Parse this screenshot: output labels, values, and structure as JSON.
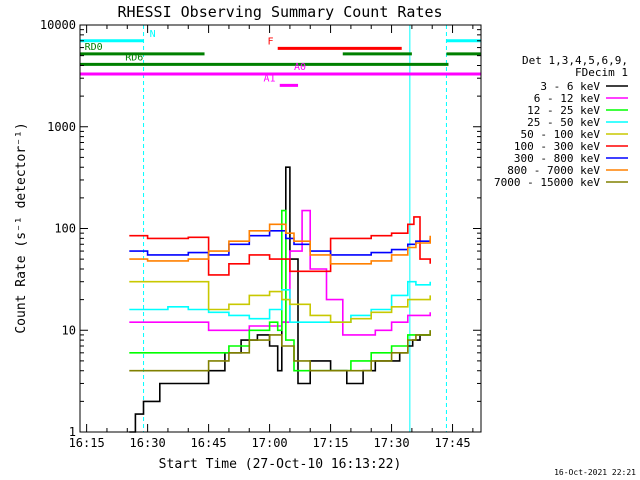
{
  "chart_data": {
    "type": "line",
    "title": "RHESSI Observing Summary Count Rates",
    "xlabel": "Start Time (27-Oct-10 16:13:22)",
    "ylabel": "Count Rate (s⁻¹ detector⁻¹)",
    "yscale": "log",
    "ylim": [
      1,
      10000
    ],
    "xlim_minutes": [
      13.37,
      112
    ],
    "x_unit": "minutes after 16:00 UT",
    "x_ticks": [
      {
        "t": 15,
        "label": "16:15"
      },
      {
        "t": 30,
        "label": "16:30"
      },
      {
        "t": 45,
        "label": "16:45"
      },
      {
        "t": 60,
        "label": "17:00"
      },
      {
        "t": 75,
        "label": "17:15"
      },
      {
        "t": 90,
        "label": "17:30"
      },
      {
        "t": 105,
        "label": "17:45"
      }
    ],
    "y_ticks": [
      {
        "v": 1,
        "label": "1"
      },
      {
        "v": 10,
        "label": "10"
      },
      {
        "v": 100,
        "label": "100"
      },
      {
        "v": 1000,
        "label": "1000"
      },
      {
        "v": 10000,
        "label": "10000"
      }
    ],
    "legend_header": [
      "Det 1,3,4,5,6,9,",
      "FDecim 1"
    ],
    "legend_placement": "right",
    "grid": false,
    "timestamp": "16-Oct-2021 22:21",
    "night_boundaries": [
      13.37,
      29,
      94.5,
      103.5
    ],
    "series": [
      {
        "name": "3 - 6 keV",
        "color": "#000000",
        "x": [
          25.5,
          27,
          29,
          33,
          37,
          41,
          45,
          49,
          53,
          57,
          60,
          62,
          63,
          64,
          65,
          67,
          70,
          75,
          79,
          83,
          86,
          89,
          92,
          94,
          95.2,
          97,
          99.5
        ],
        "y": [
          1,
          1.5,
          2,
          3,
          3,
          3,
          4,
          6,
          8,
          9,
          7,
          4,
          12,
          400,
          50,
          3,
          5,
          4,
          3,
          4,
          5,
          5,
          6,
          7,
          8,
          9,
          9
        ]
      },
      {
        "name": "6 - 12 keV",
        "color": "#ff00ff",
        "x": [
          25.5,
          30,
          35,
          40,
          42.5,
          45,
          50,
          55,
          60,
          63,
          65,
          68,
          70,
          74,
          78,
          82,
          86,
          90,
          94,
          96,
          99.5
        ],
        "y": [
          12,
          12,
          12,
          12,
          12,
          10,
          10,
          11,
          11,
          12,
          60,
          150,
          40,
          20,
          9,
          9,
          10,
          12,
          14,
          14,
          15
        ]
      },
      {
        "name": "12 - 25 keV",
        "color": "#00ff00",
        "x": [
          25.5,
          30,
          35,
          40,
          45,
          50,
          55,
          60,
          62,
          63,
          64,
          66,
          70,
          75,
          80,
          85,
          90,
          94,
          96,
          99.5
        ],
        "y": [
          6,
          6,
          6,
          6,
          6,
          7,
          10,
          12,
          10,
          150,
          8,
          4,
          4,
          4,
          5,
          6,
          7,
          9,
          9,
          10
        ]
      },
      {
        "name": "25 - 50 keV",
        "color": "#00ffff",
        "x": [
          25.5,
          30,
          35,
          40,
          42.5,
          45,
          50,
          55,
          60,
          63,
          65,
          70,
          75,
          80,
          85,
          90,
          94,
          96,
          99.5
        ],
        "y": [
          16,
          16,
          17,
          16,
          16,
          15,
          14,
          13,
          16,
          25,
          12,
          12,
          12,
          14,
          16,
          22,
          30,
          28,
          30
        ]
      },
      {
        "name": "50 - 100 keV",
        "color": "#c8c800",
        "x": [
          25.5,
          30,
          35,
          40,
          42.5,
          45,
          50,
          55,
          60,
          63,
          65,
          70,
          75,
          80,
          85,
          90,
          94,
          96,
          99.5
        ],
        "y": [
          30,
          30,
          30,
          30,
          30,
          16,
          18,
          22,
          24,
          20,
          18,
          14,
          12,
          13,
          15,
          17,
          20,
          20,
          22
        ]
      },
      {
        "name": "100 - 300 keV",
        "color": "#ff0000",
        "x": [
          25.5,
          30,
          35,
          40,
          42.5,
          45,
          50,
          55,
          60,
          65,
          70,
          75,
          80,
          85,
          90,
          94,
          95.5,
          97,
          99.5
        ],
        "y": [
          85,
          80,
          80,
          82,
          82,
          35,
          45,
          55,
          50,
          38,
          38,
          80,
          80,
          85,
          90,
          110,
          130,
          50,
          45
        ]
      },
      {
        "name": "300 - 800 keV",
        "color": "#0000ff",
        "x": [
          25.5,
          30,
          35,
          40,
          42.5,
          45,
          50,
          55,
          60,
          64,
          66,
          70,
          75,
          80,
          85,
          90,
          94,
          96,
          99.5
        ],
        "y": [
          60,
          55,
          55,
          58,
          58,
          55,
          70,
          85,
          95,
          80,
          70,
          60,
          55,
          55,
          58,
          62,
          70,
          75,
          80
        ]
      },
      {
        "name": "800 - 7000 keV",
        "color": "#ff8000",
        "x": [
          25.5,
          30,
          35,
          40,
          42.5,
          45,
          50,
          55,
          60,
          64,
          66,
          70,
          75,
          80,
          85,
          90,
          94,
          96,
          99.5
        ],
        "y": [
          50,
          48,
          48,
          50,
          50,
          60,
          75,
          95,
          110,
          90,
          75,
          55,
          45,
          45,
          48,
          55,
          65,
          72,
          85
        ]
      },
      {
        "name": "7000 - 15000 keV",
        "color": "#808000",
        "x": [
          25.5,
          30,
          35,
          40,
          45,
          50,
          55,
          60,
          63,
          66,
          70,
          75,
          80,
          85,
          90,
          94,
          96,
          99.5
        ],
        "y": [
          4,
          4,
          4,
          4,
          5,
          6,
          8,
          9,
          7,
          5,
          4,
          4,
          4,
          5,
          6,
          8,
          9,
          10
        ]
      }
    ],
    "flags": [
      {
        "label": "N",
        "color": "#00ffff",
        "row_value": 7000,
        "label_pos": 30.5,
        "segments": [
          [
            13.37,
            29
          ],
          [
            103.5,
            112
          ]
        ]
      },
      {
        "label": "RD0",
        "color": "#008000",
        "row_value": 5200,
        "label_pos": 14.5,
        "segments": [
          [
            13.37,
            44
          ],
          [
            78,
            95
          ],
          [
            103.5,
            112
          ]
        ]
      },
      {
        "label": "RD6",
        "color": "#008000",
        "row_value": 4100,
        "label_pos": 24.5,
        "segments": [
          [
            13.37,
            104
          ]
        ]
      },
      {
        "label": "F",
        "color": "#ff0000",
        "row_value": 5900,
        "label_pos": 59.5,
        "segments": [
          [
            62,
            92.5
          ]
        ]
      },
      {
        "label": "A1",
        "color": "#ff00ff",
        "row_value": 2550,
        "label_pos": 58.5,
        "segments": [
          [
            62.5,
            67
          ]
        ]
      },
      {
        "label": "A0",
        "color": "#ff00ff",
        "row_value": 3300,
        "label_pos": 66,
        "segments": [
          [
            13.37,
            112
          ]
        ]
      }
    ]
  }
}
